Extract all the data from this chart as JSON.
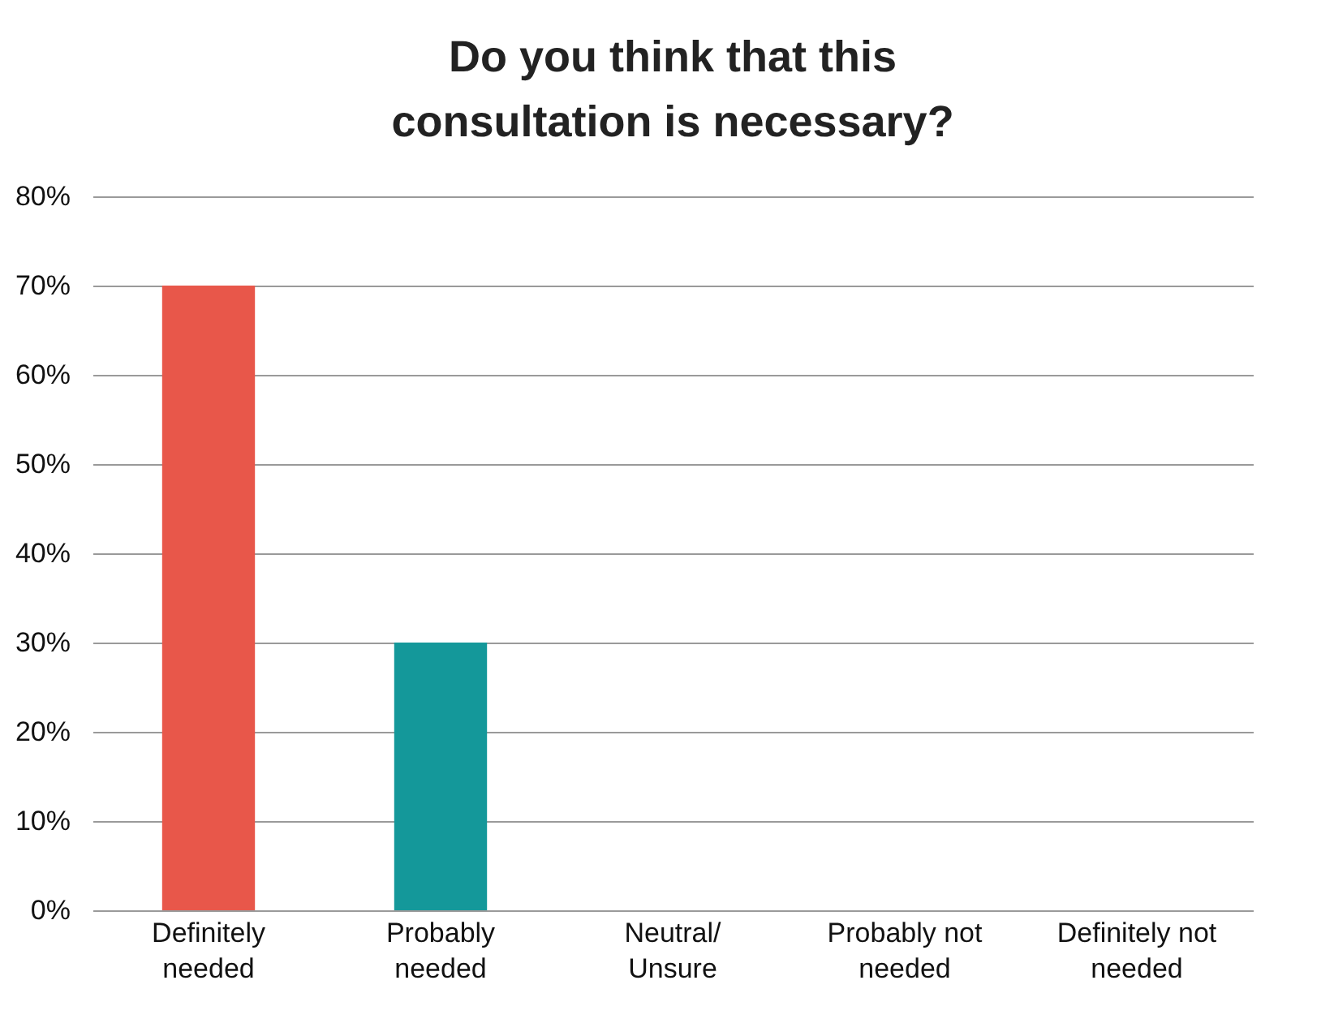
{
  "chart_data": {
    "type": "bar",
    "title": "Do you think that this consultation is necessary?",
    "categories": [
      "Definitely needed",
      "Probably needed",
      "Neutral/ Unsure",
      "Probably not needed",
      "Definitely not needed"
    ],
    "values": [
      70,
      30,
      0,
      0,
      0
    ],
    "colors": [
      "#e8574a",
      "#14989a",
      "#e8574a",
      "#e8574a",
      "#e8574a"
    ],
    "ylim": [
      0,
      80
    ],
    "yticks": [
      {
        "value": 0,
        "label": "0%"
      },
      {
        "value": 10,
        "label": "10%"
      },
      {
        "value": 20,
        "label": "20%"
      },
      {
        "value": 30,
        "label": "30%"
      },
      {
        "value": 40,
        "label": "40%"
      },
      {
        "value": 50,
        "label": "50%"
      },
      {
        "value": 60,
        "label": "60%"
      },
      {
        "value": 70,
        "label": "70%"
      },
      {
        "value": 80,
        "label": "80%"
      }
    ],
    "grid": "y"
  }
}
